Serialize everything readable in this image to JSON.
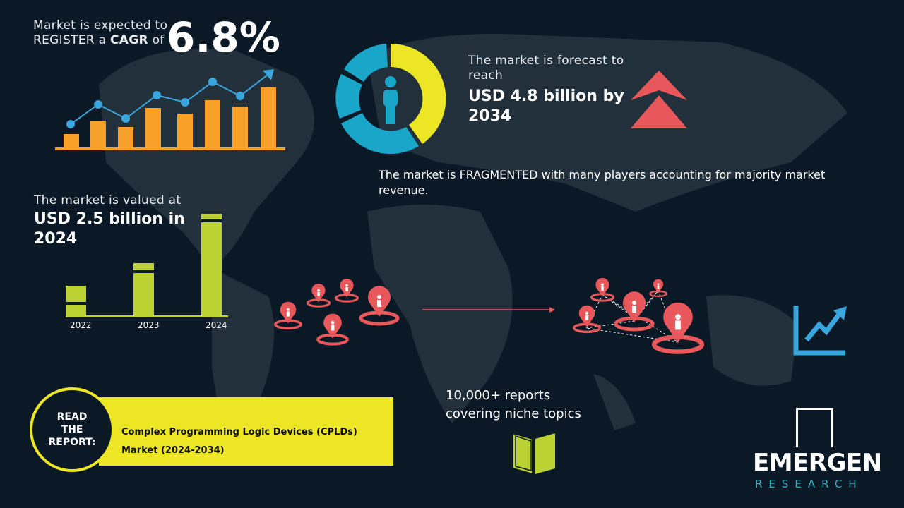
{
  "cagr": {
    "line1": "Market is expected to",
    "line2_pre": "REGISTER a ",
    "line2_bold": "CAGR",
    "line2_post": " of",
    "value": "6.8%"
  },
  "forecast": {
    "intro": "The market is forecast to reach",
    "value": "USD 4.8 billion by 2034"
  },
  "fragmented": "The market is FRAGMENTED with many players accounting for majority market revenue.",
  "valued": {
    "intro": "The market is valued at",
    "value": "USD 2.5 billion in 2024"
  },
  "year_bars": {
    "labels": [
      "2022",
      "2023",
      "2024"
    ]
  },
  "reports": {
    "line1": "10,000+ reports",
    "line2": "covering niche topics"
  },
  "read_report": {
    "badge": [
      "READ",
      "THE",
      "REPORT:"
    ],
    "title_line1": "Complex Programming Logic Devices (CPLDs)",
    "title_line2": "Market (2024-2034)"
  },
  "logo": {
    "name": "EMERGEN",
    "sub": "RESEARCH"
  },
  "colors": {
    "background": "#0b1826",
    "orange": "#f7a12b",
    "blue": "#3aa6de",
    "yellow": "#ece625",
    "green": "#bcd232",
    "red": "#e8585a",
    "teal": "#1aa6c8"
  },
  "icons": [
    "person-icon",
    "double-chevron-up-icon",
    "location-pin-icon",
    "trend-up-icon",
    "open-book-icon"
  ]
}
